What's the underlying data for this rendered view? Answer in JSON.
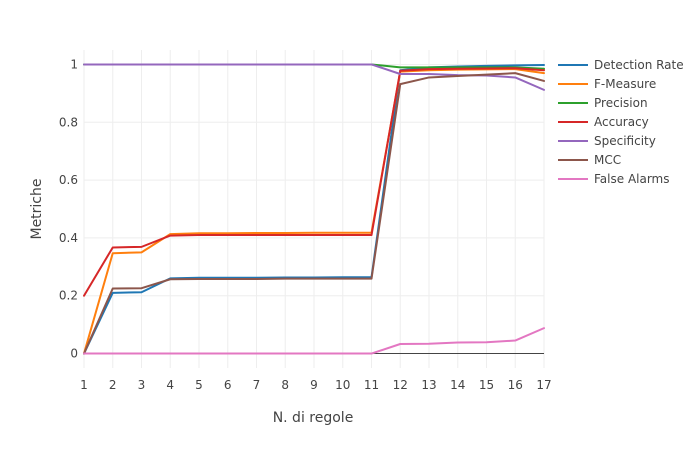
{
  "chart_data": {
    "type": "line",
    "title": "",
    "xlabel": "N. di regole",
    "ylabel": "Metriche",
    "x": [
      1,
      2,
      3,
      4,
      5,
      6,
      7,
      8,
      9,
      10,
      11,
      12,
      13,
      14,
      15,
      16,
      17
    ],
    "xlim": [
      1,
      17
    ],
    "ylim": [
      -0.05,
      1.05
    ],
    "xticks": [
      1,
      2,
      3,
      4,
      5,
      6,
      7,
      8,
      9,
      10,
      11,
      12,
      13,
      14,
      15,
      16,
      17
    ],
    "yticks": [
      0,
      0.2,
      0.4,
      0.6,
      0.8,
      1
    ],
    "ytick_labels": [
      "0",
      "0.2",
      "0.4",
      "0.6",
      "0.8",
      "1"
    ],
    "grid": true,
    "legend_position": "top-right",
    "series": [
      {
        "name": "Detection Rate",
        "color": "#1f77b4",
        "values": [
          0.0,
          0.21,
          0.212,
          0.26,
          0.262,
          0.262,
          0.262,
          0.263,
          0.263,
          0.264,
          0.264,
          0.98,
          0.99,
          0.993,
          0.995,
          0.997,
          0.998
        ]
      },
      {
        "name": "F-Measure",
        "color": "#ff7f0e",
        "values": [
          0.0,
          0.347,
          0.35,
          0.413,
          0.416,
          0.416,
          0.417,
          0.417,
          0.418,
          0.418,
          0.418,
          0.975,
          0.98,
          0.982,
          0.983,
          0.984,
          0.97
        ]
      },
      {
        "name": "Precision",
        "color": "#2ca02c",
        "values": [
          1.0,
          1.0,
          1.0,
          1.0,
          1.0,
          1.0,
          1.0,
          1.0,
          1.0,
          1.0,
          1.0,
          0.99,
          0.99,
          0.99,
          0.99,
          0.99,
          0.985
        ]
      },
      {
        "name": "Accuracy",
        "color": "#d62728",
        "values": [
          0.2,
          0.367,
          0.369,
          0.408,
          0.41,
          0.41,
          0.41,
          0.41,
          0.41,
          0.41,
          0.41,
          0.978,
          0.984,
          0.985,
          0.986,
          0.987,
          0.98
        ]
      },
      {
        "name": "Specificity",
        "color": "#9467bd",
        "values": [
          1.0,
          1.0,
          1.0,
          1.0,
          1.0,
          1.0,
          1.0,
          1.0,
          1.0,
          1.0,
          1.0,
          0.967,
          0.967,
          0.963,
          0.962,
          0.955,
          0.912
        ]
      },
      {
        "name": "MCC",
        "color": "#8c564b",
        "values": [
          0.0,
          0.225,
          0.226,
          0.257,
          0.258,
          0.258,
          0.258,
          0.259,
          0.259,
          0.259,
          0.259,
          0.932,
          0.955,
          0.96,
          0.965,
          0.97,
          0.943
        ]
      },
      {
        "name": "False Alarms",
        "color": "#e377c2",
        "values": [
          0.0,
          0.0,
          0.0,
          0.0,
          0.0,
          0.0,
          0.0,
          0.0,
          0.0,
          0.0,
          0.0,
          0.033,
          0.034,
          0.038,
          0.039,
          0.045,
          0.088
        ]
      }
    ]
  }
}
